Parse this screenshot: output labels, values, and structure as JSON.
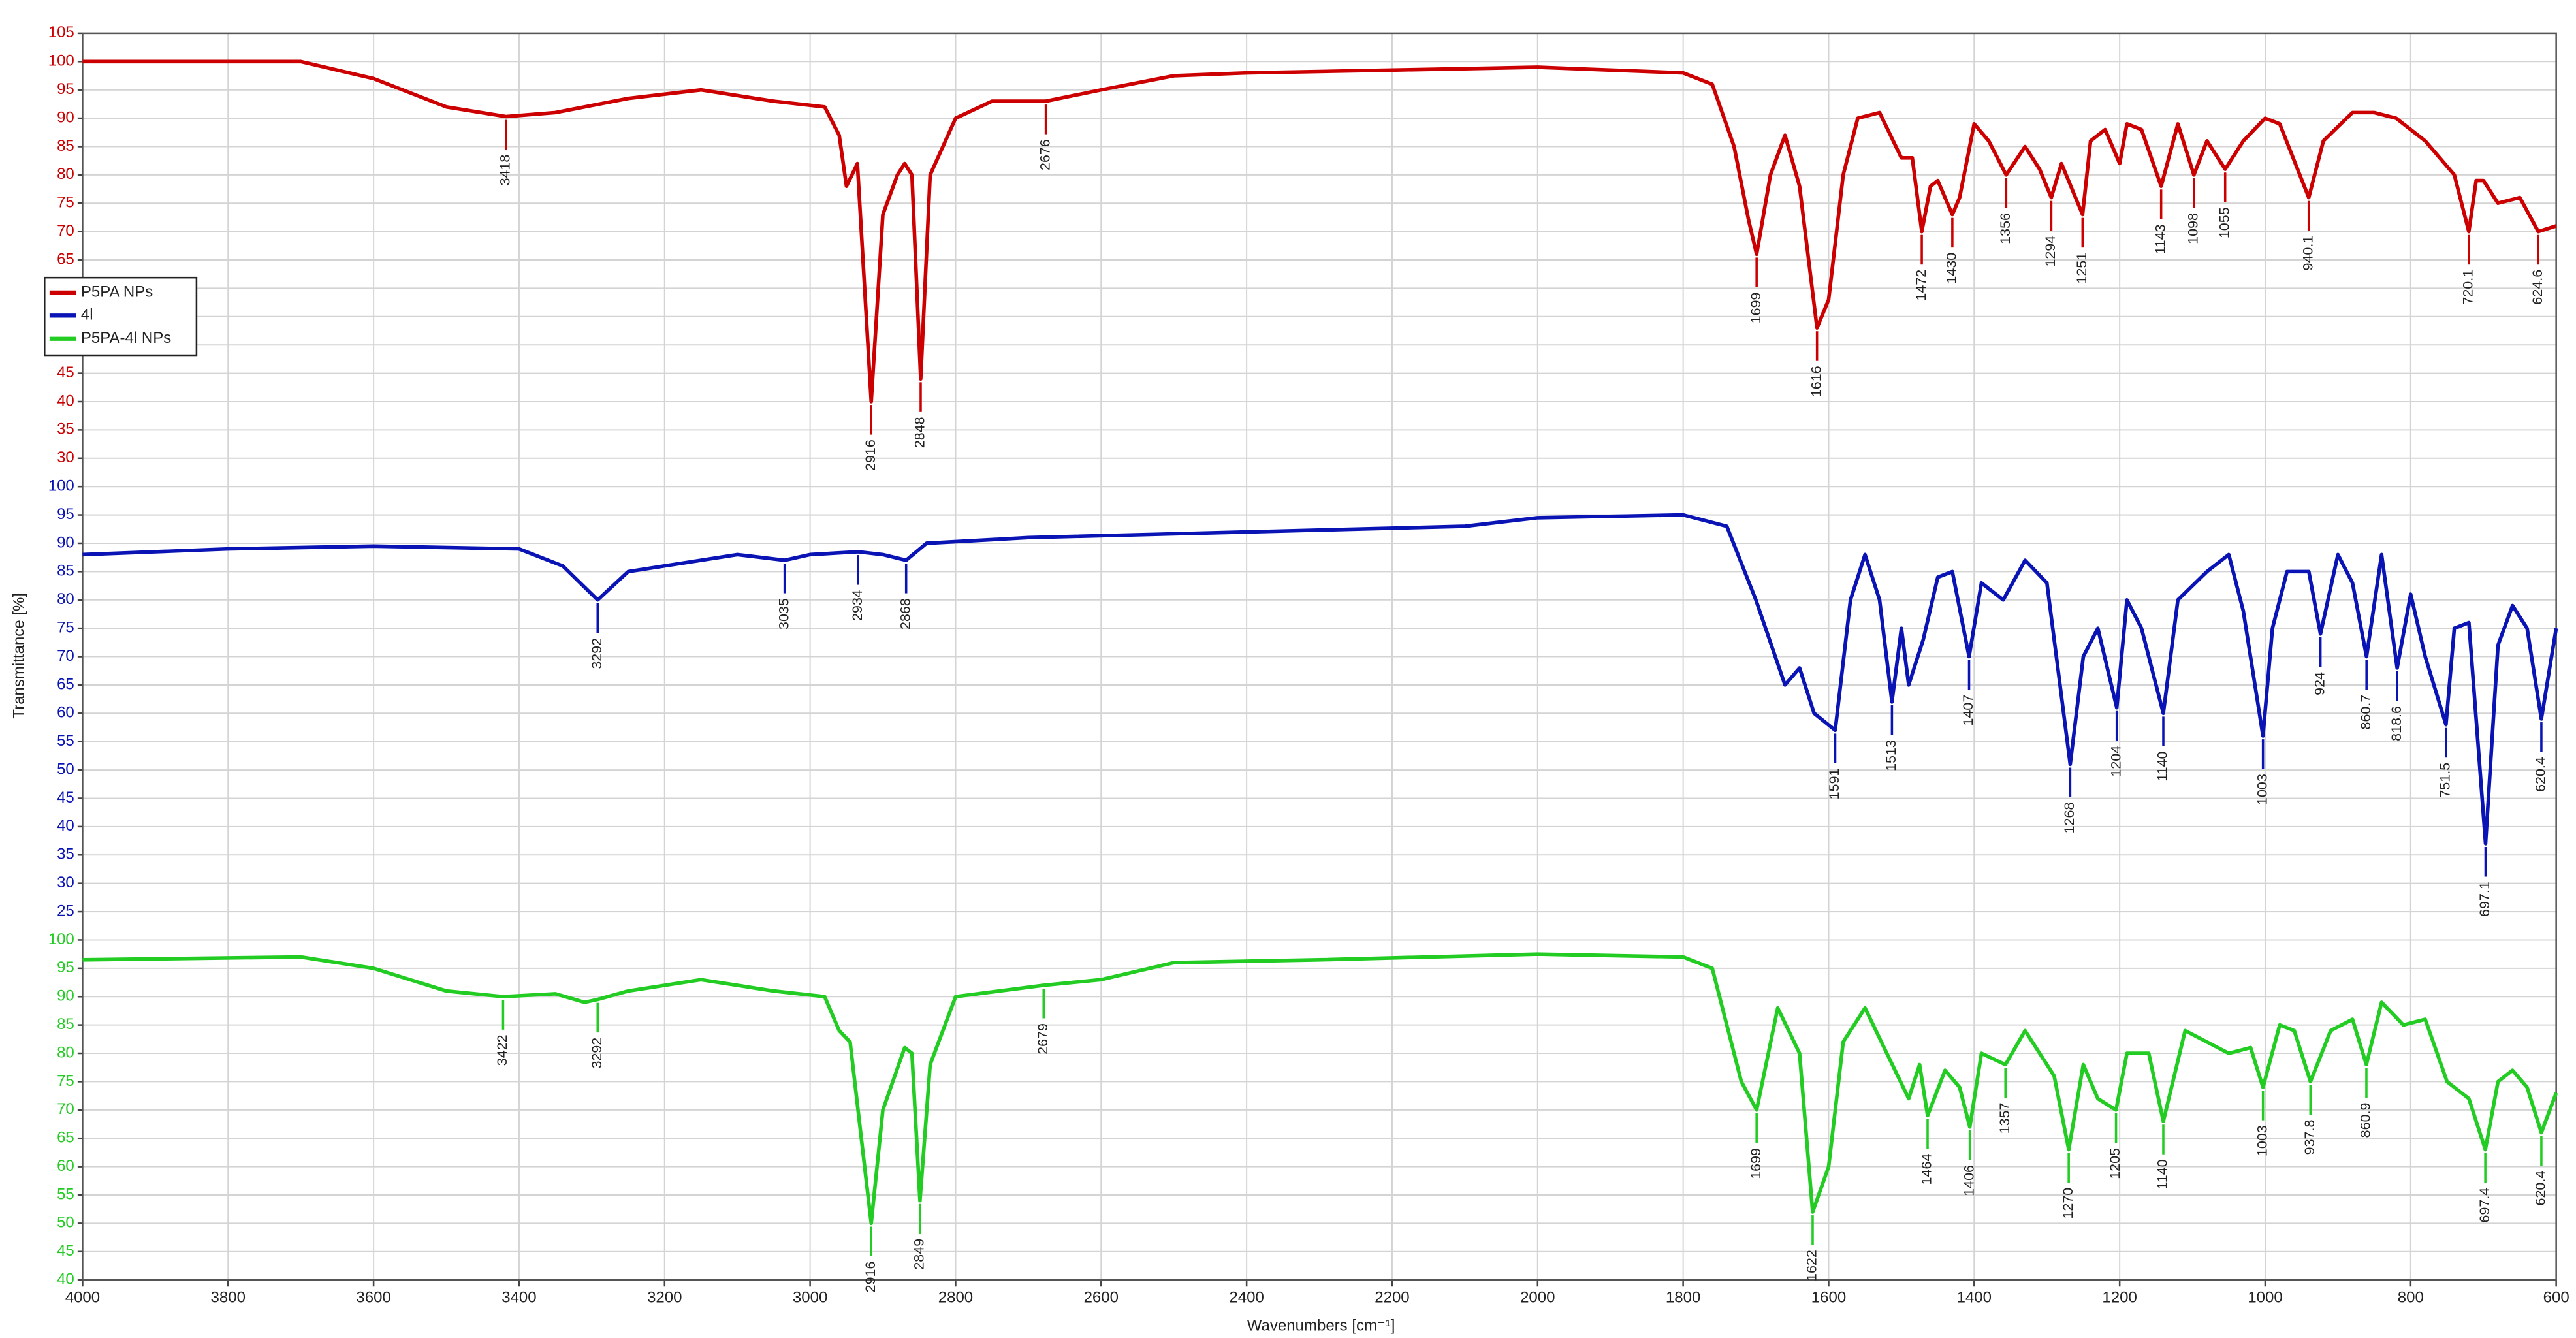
{
  "chart_data": {
    "type": "line",
    "xlabel": "Wavenumbers [cm⁻¹]",
    "ylabel": "Transmittance [%]",
    "xlim": [
      4000,
      600
    ],
    "xticks": [
      4000,
      3800,
      3600,
      3400,
      3200,
      3000,
      2800,
      2600,
      2400,
      2200,
      2000,
      1800,
      1600,
      1400,
      1200,
      1000,
      800,
      600
    ],
    "grid": true,
    "legend": "left",
    "series": [
      {
        "name": "P5PA NPs",
        "color": "#cc0000",
        "ylim": [
          30,
          105
        ],
        "yticks": [
          105,
          100,
          95,
          90,
          85,
          80,
          75,
          70,
          65,
          60,
          55,
          50,
          45,
          40,
          35,
          30
        ],
        "x": [
          4000,
          3700,
          3600,
          3500,
          3418,
          3350,
          3250,
          3150,
          3050,
          2980,
          2960,
          2950,
          2935,
          2916,
          2900,
          2880,
          2870,
          2860,
          2848,
          2835,
          2800,
          2750,
          2676,
          2600,
          2500,
          2400,
          2200,
          2000,
          1900,
          1800,
          1760,
          1730,
          1710,
          1699,
          1680,
          1660,
          1640,
          1616,
          1600,
          1580,
          1560,
          1530,
          1500,
          1485,
          1472,
          1460,
          1450,
          1430,
          1420,
          1400,
          1380,
          1356,
          1330,
          1310,
          1294,
          1280,
          1251,
          1240,
          1220,
          1200,
          1190,
          1170,
          1143,
          1120,
          1098,
          1080,
          1055,
          1030,
          1000,
          980,
          940.1,
          920,
          880,
          850,
          820,
          780,
          740,
          720.1,
          710,
          700,
          680,
          650,
          624.6,
          600
        ],
        "values": [
          100,
          100,
          97,
          92,
          90.3,
          91,
          93.5,
          95,
          93,
          92,
          87,
          78,
          82,
          40,
          73,
          80,
          82,
          80,
          44,
          80,
          90,
          93,
          93,
          95,
          97.5,
          98,
          98.5,
          99,
          98.5,
          98,
          96,
          85,
          72,
          66,
          80,
          87,
          78,
          53,
          58,
          80,
          90,
          91,
          83,
          83,
          70,
          78,
          79,
          73,
          76,
          89,
          86,
          80,
          85,
          81,
          76,
          82,
          73,
          86,
          88,
          82,
          89,
          88,
          78,
          89,
          80,
          86,
          81,
          86,
          90,
          89,
          76,
          86,
          91,
          91,
          90,
          86,
          80,
          70,
          79,
          79,
          75,
          76,
          70,
          71
        ],
        "peaks": [
          3418,
          2916,
          2848,
          2676,
          1699,
          1616,
          1472,
          1430,
          1356,
          1294,
          1251,
          1143,
          1098,
          1055,
          940.1,
          720.1,
          624.6
        ]
      },
      {
        "name": "4l",
        "color": "#0a14b4",
        "ylim": [
          25,
          100
        ],
        "yticks": [
          100,
          95,
          90,
          85,
          80,
          75,
          70,
          65,
          60,
          55,
          50,
          45,
          40,
          35,
          30,
          25
        ],
        "x": [
          4000,
          3800,
          3600,
          3400,
          3340,
          3292,
          3250,
          3100,
          3035,
          3000,
          2934,
          2900,
          2868,
          2840,
          2700,
          2400,
          2100,
          2000,
          1800,
          1740,
          1700,
          1660,
          1640,
          1620,
          1591,
          1570,
          1550,
          1530,
          1513,
          1500,
          1490,
          1470,
          1450,
          1430,
          1407,
          1390,
          1360,
          1330,
          1300,
          1268,
          1250,
          1230,
          1204,
          1190,
          1170,
          1140,
          1120,
          1080,
          1050,
          1030,
          1003,
          990,
          970,
          940,
          924,
          900,
          880,
          860.7,
          840,
          818.6,
          800,
          780,
          751.5,
          740,
          720,
          697.1,
          680,
          660,
          640,
          620.4,
          600
        ],
        "values": [
          88,
          89,
          89.5,
          89,
          86,
          80,
          85,
          88,
          87,
          88,
          88.5,
          88,
          87,
          90,
          91,
          92,
          93,
          94.5,
          95,
          93,
          80,
          65,
          68,
          60,
          57,
          80,
          88,
          80,
          62,
          75,
          65,
          73,
          84,
          85,
          70,
          83,
          80,
          87,
          83,
          51,
          70,
          75,
          61,
          80,
          75,
          60,
          80,
          85,
          88,
          78,
          56,
          75,
          85,
          85,
          74,
          88,
          83,
          70,
          88,
          68,
          81,
          70,
          58,
          75,
          76,
          37,
          72,
          79,
          75,
          59,
          75
        ],
        "peaks": [
          3292,
          3035,
          2934,
          2868,
          1591,
          1513,
          1407,
          1268,
          1204,
          1140,
          1003,
          924,
          860.7,
          818.6,
          751.5,
          697.1,
          620.4
        ]
      },
      {
        "name": "P5PA-4l NPs",
        "color": "#22cc22",
        "ylim": [
          40,
          100
        ],
        "yticks": [
          100,
          95,
          90,
          85,
          80,
          75,
          70,
          65,
          60,
          55,
          50,
          45,
          40
        ],
        "x": [
          4000,
          3700,
          3600,
          3500,
          3422,
          3350,
          3310,
          3292,
          3250,
          3150,
          3050,
          2980,
          2960,
          2945,
          2916,
          2900,
          2870,
          2860,
          2849,
          2835,
          2800,
          2679,
          2600,
          2500,
          2300,
          2000,
          1800,
          1760,
          1720,
          1699,
          1670,
          1640,
          1622,
          1600,
          1580,
          1550,
          1520,
          1490,
          1475,
          1464,
          1440,
          1420,
          1406,
          1390,
          1357,
          1330,
          1310,
          1290,
          1270,
          1250,
          1230,
          1205,
          1190,
          1160,
          1140,
          1110,
          1050,
          1020,
          1003,
          980,
          960,
          937.8,
          910,
          880,
          860.9,
          840,
          810,
          780,
          750,
          720,
          697.4,
          680,
          660,
          640,
          620.4,
          600
        ],
        "values": [
          96.5,
          97,
          95,
          91,
          90,
          90.5,
          89,
          89.5,
          91,
          93,
          91,
          90,
          84,
          82,
          50,
          70,
          81,
          80,
          54,
          78,
          90,
          92,
          93,
          96,
          96.5,
          97.5,
          97,
          95,
          75,
          70,
          88,
          80,
          52,
          60,
          82,
          88,
          80,
          72,
          78,
          69,
          77,
          74,
          67,
          80,
          78,
          84,
          80,
          76,
          63,
          78,
          72,
          70,
          80,
          80,
          68,
          84,
          80,
          81,
          74,
          85,
          84,
          75,
          84,
          86,
          78,
          89,
          85,
          86,
          75,
          72,
          63,
          75,
          77,
          74,
          66,
          73
        ],
        "peaks": [
          3422,
          3292,
          2916,
          2849,
          2679,
          1699,
          1622,
          1464,
          1406,
          1357,
          1270,
          1205,
          1140,
          1003,
          937.8,
          860.9,
          697.4,
          620.4
        ]
      }
    ]
  }
}
